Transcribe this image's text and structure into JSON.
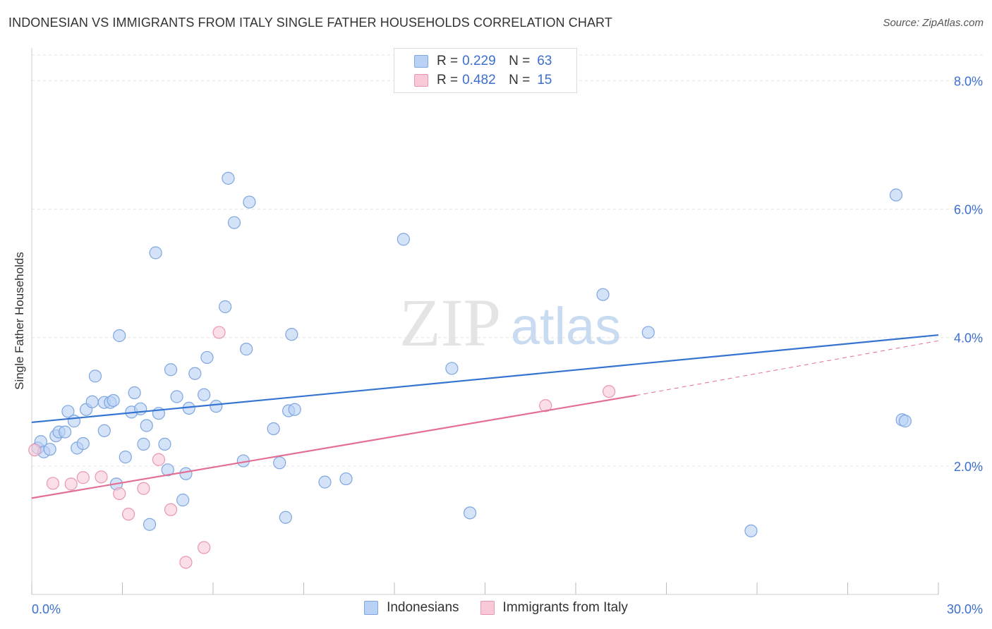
{
  "title": "INDONESIAN VS IMMIGRANTS FROM ITALY SINGLE FATHER HOUSEHOLDS CORRELATION CHART",
  "source": "Source: ZipAtlas.com",
  "watermark": {
    "zip": "ZIP",
    "atlas": "atlas"
  },
  "legend": {
    "r_label": "R =",
    "n_label": "N =",
    "rows": [
      {
        "r": "0.229",
        "n": "63",
        "fill": "#b9d1f5",
        "stroke": "#7ea6e0"
      },
      {
        "r": "0.482",
        "n": "15",
        "fill": "#f9c9d8",
        "stroke": "#e996b2"
      }
    ]
  },
  "bottom_legend": [
    {
      "label": "Indonesians",
      "fill": "#b9d1f5",
      "stroke": "#7ea6e0"
    },
    {
      "label": "Immigrants from Italy",
      "fill": "#f9c9d8",
      "stroke": "#e996b2"
    }
  ],
  "chart_data": {
    "type": "scatter",
    "xlabel": "",
    "ylabel": "Single Father Households",
    "xlim": [
      0,
      30
    ],
    "ylim": [
      0,
      8.4
    ],
    "x_tick_labels": [
      {
        "value": 0,
        "label": "0.0%"
      },
      {
        "value": 30,
        "label": "30.0%"
      }
    ],
    "y_tick_labels": [
      {
        "value": 2,
        "label": "2.0%"
      },
      {
        "value": 4,
        "label": "4.0%"
      },
      {
        "value": 6,
        "label": "6.0%"
      },
      {
        "value": 8,
        "label": "8.0%"
      }
    ],
    "colors": {
      "blue": "#3474d0",
      "pink": "#e36e96",
      "blue_fill": "#b9d1f5",
      "pink_fill": "#f9c9d8",
      "axis_label": "#3b6fcf"
    },
    "series": [
      {
        "name": "Indonesians",
        "points": [
          [
            0.2,
            2.28
          ],
          [
            0.3,
            2.38
          ],
          [
            0.4,
            2.22
          ],
          [
            0.6,
            2.26
          ],
          [
            0.8,
            2.47
          ],
          [
            0.9,
            2.53
          ],
          [
            1.1,
            2.53
          ],
          [
            1.2,
            2.85
          ],
          [
            1.4,
            2.7
          ],
          [
            1.5,
            2.28
          ],
          [
            1.7,
            2.35
          ],
          [
            1.8,
            2.88
          ],
          [
            2.0,
            3.0
          ],
          [
            2.1,
            3.4
          ],
          [
            2.4,
            2.99
          ],
          [
            2.4,
            2.55
          ],
          [
            2.6,
            2.99
          ],
          [
            2.7,
            3.02
          ],
          [
            2.8,
            1.72
          ],
          [
            2.9,
            4.03
          ],
          [
            3.1,
            2.14
          ],
          [
            3.3,
            2.84
          ],
          [
            3.4,
            3.14
          ],
          [
            3.6,
            2.89
          ],
          [
            3.7,
            2.34
          ],
          [
            3.8,
            2.63
          ],
          [
            3.9,
            1.09
          ],
          [
            4.1,
            5.32
          ],
          [
            4.2,
            2.82
          ],
          [
            4.4,
            2.34
          ],
          [
            4.5,
            1.94
          ],
          [
            4.6,
            3.5
          ],
          [
            4.8,
            3.08
          ],
          [
            5.0,
            1.47
          ],
          [
            5.1,
            1.88
          ],
          [
            5.2,
            2.9
          ],
          [
            5.4,
            3.44
          ],
          [
            5.7,
            3.11
          ],
          [
            5.8,
            3.69
          ],
          [
            6.1,
            2.93
          ],
          [
            6.4,
            4.48
          ],
          [
            6.5,
            6.48
          ],
          [
            6.7,
            5.79
          ],
          [
            7.0,
            2.08
          ],
          [
            7.1,
            3.82
          ],
          [
            7.2,
            6.11
          ],
          [
            8.0,
            2.58
          ],
          [
            8.2,
            2.05
          ],
          [
            8.4,
            1.2
          ],
          [
            8.5,
            2.86
          ],
          [
            8.6,
            4.05
          ],
          [
            8.7,
            2.88
          ],
          [
            9.7,
            1.75
          ],
          [
            10.4,
            1.8
          ],
          [
            12.3,
            5.53
          ],
          [
            13.9,
            3.52
          ],
          [
            14.5,
            1.27
          ],
          [
            18.9,
            4.67
          ],
          [
            20.4,
            4.08
          ],
          [
            23.8,
            0.99
          ],
          [
            28.6,
            6.22
          ],
          [
            28.8,
            2.72
          ],
          [
            28.9,
            2.7
          ]
        ]
      },
      {
        "name": "Immigrants from Italy",
        "points": [
          [
            0.1,
            2.25
          ],
          [
            0.7,
            1.73
          ],
          [
            1.3,
            1.72
          ],
          [
            1.7,
            1.82
          ],
          [
            2.3,
            1.83
          ],
          [
            2.9,
            1.57
          ],
          [
            3.2,
            1.25
          ],
          [
            3.7,
            1.65
          ],
          [
            4.2,
            2.1
          ],
          [
            4.6,
            1.32
          ],
          [
            5.1,
            0.5
          ],
          [
            5.7,
            0.73
          ],
          [
            6.2,
            4.08
          ],
          [
            17.0,
            2.94
          ],
          [
            19.1,
            3.16
          ]
        ]
      }
    ],
    "trendlines": [
      {
        "series": "Indonesians",
        "x0": 0,
        "y0": 2.68,
        "x1": 30,
        "y1": 4.04,
        "dashed_to": null
      },
      {
        "series": "Immigrants from Italy",
        "x0": 0,
        "y0": 1.5,
        "x1": 20.0,
        "y1": 3.1,
        "dashed_to": [
          30,
          3.95
        ]
      }
    ]
  }
}
